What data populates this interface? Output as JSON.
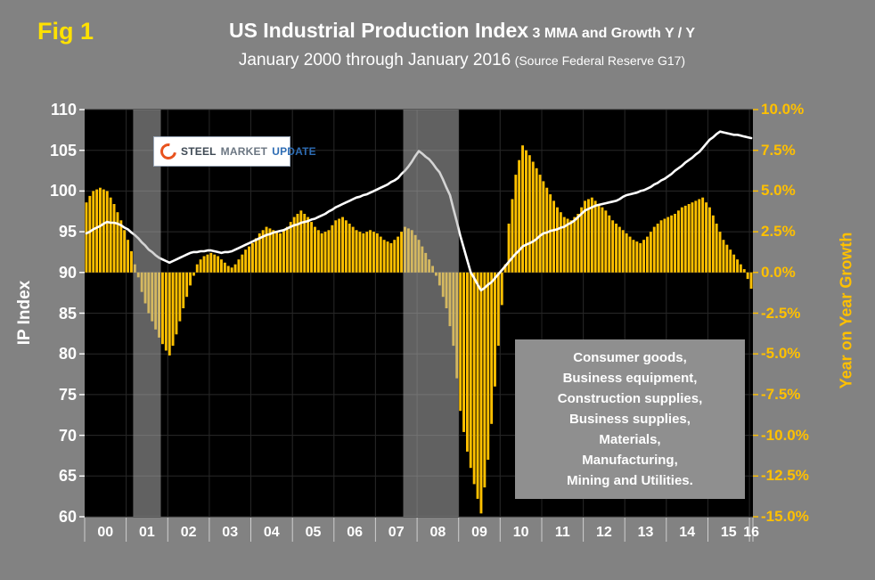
{
  "figure": {
    "label": "Fig 1",
    "title_main": "US Industrial Production Index",
    "title_sub": "3 MMA and Growth Y / Y",
    "subtitle": "January 2000 through January 2016",
    "source": "(Source Federal Reserve G17)"
  },
  "logo": {
    "word1": "STEEL",
    "word2": "MARKET",
    "word3": "UPDATE"
  },
  "annotation": {
    "lines": [
      "Consumer goods,",
      "Business equipment,",
      "Construction supplies,",
      "Business supplies,",
      "Materials,",
      "Manufacturing,",
      "Mining and Utilities."
    ]
  },
  "colors": {
    "background": "#828282",
    "plot_bg": "#000000",
    "bar": "#ffc000",
    "line": "#ffffff",
    "right_axis": "#ffc000",
    "fig_label": "#ffe100",
    "recession_band": "#b0b0b0"
  },
  "chart_data": {
    "type": "combo",
    "title": "US Industrial Production Index 3 MMA and Growth Y / Y",
    "subtitle": "January 2000 through January 2016",
    "source": "Federal Reserve G17",
    "x": {
      "start": "2000-01",
      "end": "2016-01",
      "frequency": "monthly",
      "year_labels": [
        "00",
        "01",
        "02",
        "03",
        "04",
        "05",
        "06",
        "07",
        "08",
        "09",
        "10",
        "11",
        "12",
        "13",
        "14",
        "15",
        "16"
      ]
    },
    "left_axis": {
      "label": "IP Index",
      "range": [
        60,
        110
      ],
      "ticks": [
        110,
        105,
        100,
        95,
        90,
        85,
        80,
        75,
        70,
        65,
        60
      ]
    },
    "right_axis": {
      "label": "Year on Year Growth",
      "range": [
        -15,
        10
      ],
      "tick_labels": [
        "10.0%",
        "7.5%",
        "5.0%",
        "2.5%",
        "0.0%",
        "-2.5%",
        "-5.0%",
        "-7.5%",
        "-10.0%",
        "-12.5%",
        "-15.0%"
      ]
    },
    "shaded_bands": [
      {
        "start": 14,
        "end": 22
      },
      {
        "start": 92,
        "end": 108
      }
    ],
    "series": [
      {
        "name": "IP Index (3 MMA)",
        "type": "line",
        "axis": "left",
        "color": "#ffffff",
        "values": [
          94.8,
          95.0,
          95.3,
          95.5,
          95.7,
          96.0,
          96.2,
          96.1,
          96.1,
          96.0,
          95.8,
          95.5,
          95.3,
          94.9,
          94.6,
          94.2,
          93.7,
          93.3,
          92.8,
          92.5,
          92.1,
          91.8,
          91.6,
          91.4,
          91.2,
          91.4,
          91.6,
          91.8,
          92.0,
          92.2,
          92.4,
          92.5,
          92.5,
          92.6,
          92.6,
          92.7,
          92.7,
          92.6,
          92.5,
          92.4,
          92.5,
          92.5,
          92.6,
          92.8,
          93.0,
          93.2,
          93.4,
          93.6,
          93.8,
          94.0,
          94.2,
          94.4,
          94.6,
          94.7,
          94.9,
          95.0,
          95.1,
          95.2,
          95.4,
          95.6,
          95.8,
          95.9,
          96.1,
          96.2,
          96.3,
          96.5,
          96.6,
          96.8,
          97.0,
          97.2,
          97.5,
          97.7,
          98.0,
          98.2,
          98.4,
          98.6,
          98.8,
          99.0,
          99.2,
          99.3,
          99.5,
          99.6,
          99.8,
          100.0,
          100.2,
          100.4,
          100.6,
          100.8,
          101.1,
          101.3,
          101.6,
          102.1,
          102.5,
          103.0,
          103.6,
          104.3,
          104.9,
          104.6,
          104.2,
          103.9,
          103.4,
          102.8,
          102.3,
          101.4,
          100.4,
          99.5,
          97.8,
          96.2,
          94.5,
          93.0,
          91.5,
          90.0,
          89.3,
          88.5,
          87.8,
          88.1,
          88.5,
          88.8,
          89.3,
          89.8,
          90.3,
          90.8,
          91.3,
          91.8,
          92.3,
          92.7,
          93.2,
          93.4,
          93.6,
          93.8,
          94.1,
          94.5,
          94.8,
          94.9,
          95.1,
          95.2,
          95.3,
          95.5,
          95.6,
          95.9,
          96.1,
          96.4,
          96.8,
          97.2,
          97.6,
          97.8,
          98.0,
          98.2,
          98.3,
          98.4,
          98.5,
          98.6,
          98.7,
          98.8,
          99.0,
          99.3,
          99.5,
          99.6,
          99.7,
          99.8,
          100.0,
          100.1,
          100.3,
          100.5,
          100.8,
          101.0,
          101.3,
          101.5,
          101.8,
          102.1,
          102.5,
          102.8,
          103.1,
          103.5,
          103.8,
          104.1,
          104.5,
          104.8,
          105.3,
          105.8,
          106.3,
          106.6,
          107.0,
          107.3,
          107.2,
          107.1,
          107.0,
          106.9,
          106.9,
          106.8,
          106.7,
          106.6,
          106.5
        ]
      },
      {
        "name": "Growth Y / Y (%)",
        "type": "bar",
        "axis": "right",
        "color": "#ffc000",
        "values": [
          4.3,
          4.7,
          5.0,
          5.1,
          5.2,
          5.1,
          5.0,
          4.6,
          4.2,
          3.7,
          3.2,
          2.6,
          2.0,
          1.3,
          0.5,
          -0.3,
          -1.2,
          -1.9,
          -2.5,
          -3.0,
          -3.5,
          -4.0,
          -4.4,
          -4.8,
          -5.1,
          -4.5,
          -3.8,
          -3.0,
          -2.2,
          -1.5,
          -0.8,
          -0.2,
          0.5,
          0.8,
          1.0,
          1.1,
          1.2,
          1.1,
          1.0,
          0.8,
          0.6,
          0.4,
          0.3,
          0.5,
          0.8,
          1.1,
          1.4,
          1.6,
          1.8,
          2.1,
          2.4,
          2.6,
          2.8,
          2.7,
          2.6,
          2.5,
          2.4,
          2.6,
          2.8,
          3.1,
          3.4,
          3.6,
          3.8,
          3.6,
          3.4,
          3.1,
          2.8,
          2.6,
          2.4,
          2.5,
          2.6,
          2.9,
          3.2,
          3.3,
          3.4,
          3.2,
          3.0,
          2.8,
          2.6,
          2.5,
          2.4,
          2.5,
          2.6,
          2.5,
          2.4,
          2.2,
          2.0,
          1.9,
          1.8,
          2.0,
          2.2,
          2.5,
          2.8,
          2.7,
          2.6,
          2.3,
          2.0,
          1.6,
          1.2,
          0.8,
          0.4,
          -0.2,
          -0.8,
          -1.5,
          -2.2,
          -3.3,
          -4.5,
          -6.5,
          -8.5,
          -9.8,
          -11.0,
          -12.0,
          -13.0,
          -13.9,
          -14.8,
          -13.2,
          -11.5,
          -9.3,
          -7.0,
          -4.5,
          -2.0,
          0.5,
          3.0,
          4.5,
          6.0,
          6.9,
          7.8,
          7.5,
          7.2,
          6.8,
          6.4,
          6.0,
          5.6,
          5.2,
          4.8,
          4.4,
          4.0,
          3.7,
          3.4,
          3.3,
          3.2,
          3.4,
          3.6,
          4.0,
          4.4,
          4.5,
          4.6,
          4.4,
          4.2,
          4.0,
          3.8,
          3.5,
          3.2,
          3.0,
          2.8,
          2.6,
          2.4,
          2.2,
          2.0,
          1.9,
          1.8,
          2.0,
          2.2,
          2.5,
          2.8,
          3.0,
          3.2,
          3.3,
          3.4,
          3.5,
          3.6,
          3.8,
          4.0,
          4.1,
          4.2,
          4.3,
          4.4,
          4.5,
          4.6,
          4.3,
          4.0,
          3.5,
          3.0,
          2.5,
          2.0,
          1.7,
          1.4,
          1.1,
          0.8,
          0.5,
          0.2,
          -0.4,
          -1.0
        ]
      }
    ]
  }
}
